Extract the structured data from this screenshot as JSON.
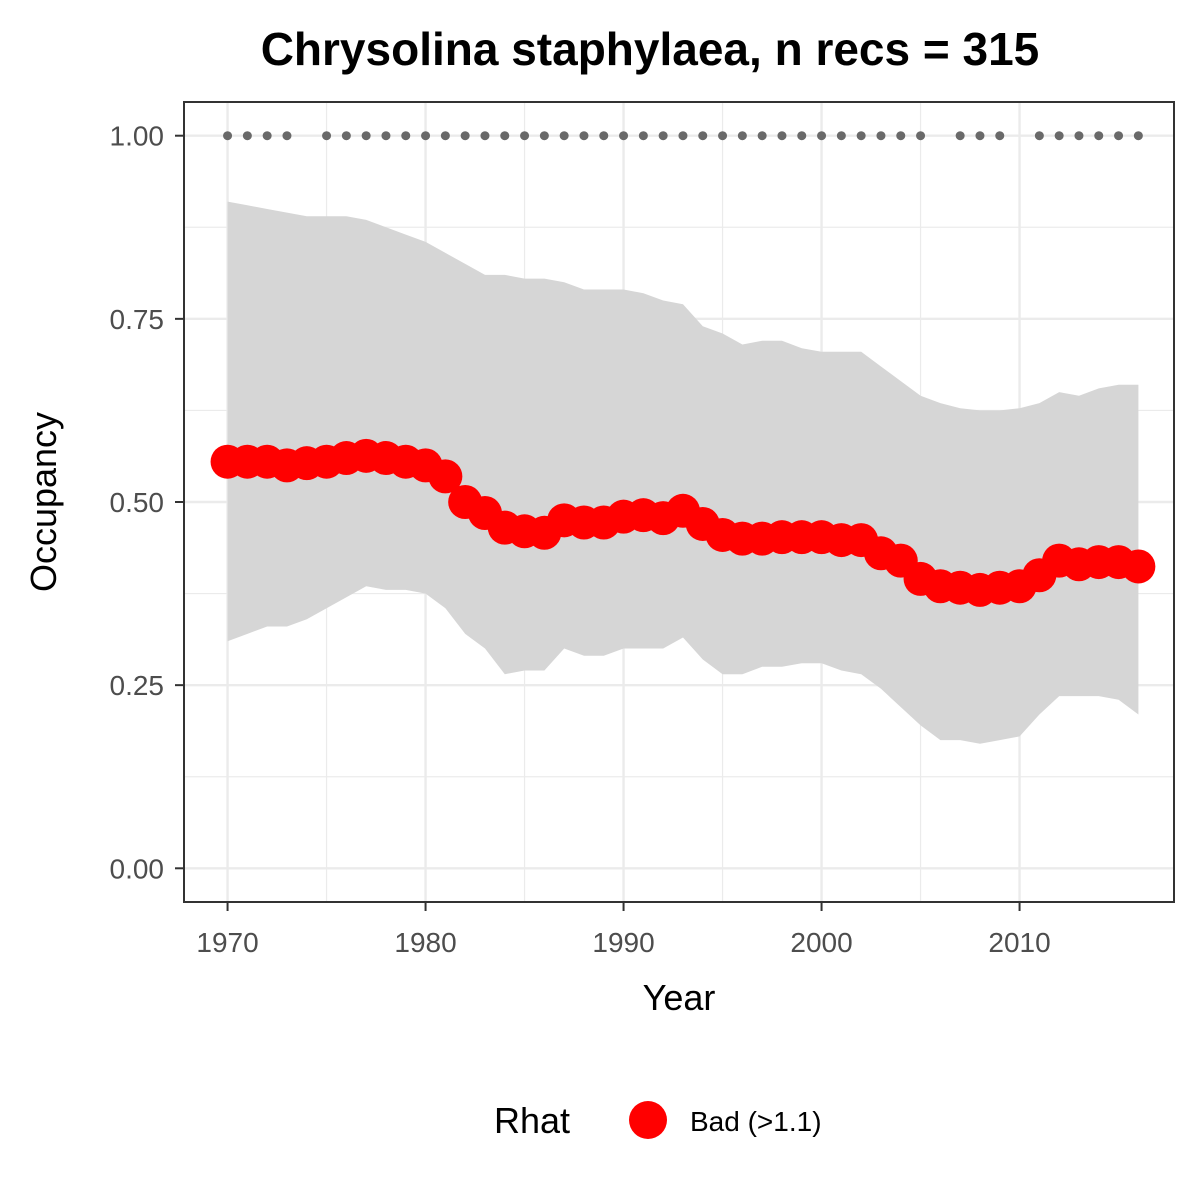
{
  "chart_data": {
    "type": "line",
    "title": "Chrysolina staphylaea, n recs = 315",
    "xlabel": "Year",
    "ylabel": "Occupancy",
    "xlim": [
      1967.8,
      2017.8
    ],
    "ylim": [
      -0.046,
      1.046
    ],
    "x_ticks": [
      1970,
      1980,
      1990,
      2000,
      2010
    ],
    "x_tick_labels": [
      "1970",
      "1980",
      "1990",
      "2000",
      "2010"
    ],
    "y_ticks": [
      0,
      0.25,
      0.5,
      0.75,
      1.0
    ],
    "y_tick_labels": [
      "0.00",
      "0.25",
      "0.50",
      "0.75",
      "1.00"
    ],
    "grid": true,
    "legend": {
      "position": "bottom",
      "title": "Rhat",
      "entries": [
        {
          "label": "Bad (>1.1)",
          "color": "#ff0000"
        }
      ]
    },
    "colors": {
      "series": "#ff0000",
      "ribbon": "#d6d6d6",
      "record_dots": "#696969"
    },
    "series": [
      {
        "label": "Bad (>1.1)",
        "x": [
          1970,
          1971,
          1972,
          1973,
          1974,
          1975,
          1976,
          1977,
          1978,
          1979,
          1980,
          1981,
          1982,
          1983,
          1984,
          1985,
          1986,
          1987,
          1988,
          1989,
          1990,
          1991,
          1992,
          1993,
          1994,
          1995,
          1996,
          1997,
          1998,
          1999,
          2000,
          2001,
          2002,
          2003,
          2004,
          2005,
          2006,
          2007,
          2008,
          2009,
          2010,
          2011,
          2012,
          2013,
          2014,
          2015,
          2016
        ],
        "y": [
          0.555,
          0.555,
          0.555,
          0.55,
          0.553,
          0.555,
          0.56,
          0.563,
          0.56,
          0.555,
          0.55,
          0.535,
          0.5,
          0.485,
          0.465,
          0.46,
          0.458,
          0.475,
          0.472,
          0.472,
          0.48,
          0.482,
          0.478,
          0.488,
          0.47,
          0.455,
          0.45,
          0.45,
          0.452,
          0.452,
          0.452,
          0.448,
          0.448,
          0.43,
          0.42,
          0.395,
          0.385,
          0.383,
          0.38,
          0.383,
          0.385,
          0.4,
          0.42,
          0.415,
          0.418,
          0.418,
          0.412
        ]
      }
    ],
    "ribbon": {
      "x": [
        1970,
        1971,
        1972,
        1973,
        1974,
        1975,
        1976,
        1977,
        1978,
        1979,
        1980,
        1981,
        1982,
        1983,
        1984,
        1985,
        1986,
        1987,
        1988,
        1989,
        1990,
        1991,
        1992,
        1993,
        1994,
        1995,
        1996,
        1997,
        1998,
        1999,
        2000,
        2001,
        2002,
        2003,
        2004,
        2005,
        2006,
        2007,
        2008,
        2009,
        2010,
        2011,
        2012,
        2013,
        2014,
        2015,
        2016
      ],
      "upper": [
        0.91,
        0.905,
        0.9,
        0.895,
        0.89,
        0.89,
        0.89,
        0.885,
        0.875,
        0.865,
        0.855,
        0.84,
        0.825,
        0.81,
        0.81,
        0.805,
        0.805,
        0.8,
        0.79,
        0.79,
        0.79,
        0.785,
        0.775,
        0.77,
        0.74,
        0.73,
        0.715,
        0.72,
        0.72,
        0.71,
        0.705,
        0.705,
        0.705,
        0.685,
        0.665,
        0.645,
        0.635,
        0.628,
        0.625,
        0.625,
        0.628,
        0.635,
        0.65,
        0.645,
        0.655,
        0.66,
        0.66
      ],
      "lower": [
        0.31,
        0.32,
        0.33,
        0.33,
        0.34,
        0.355,
        0.37,
        0.385,
        0.38,
        0.38,
        0.375,
        0.355,
        0.32,
        0.3,
        0.265,
        0.27,
        0.27,
        0.3,
        0.29,
        0.29,
        0.3,
        0.3,
        0.3,
        0.315,
        0.285,
        0.265,
        0.265,
        0.275,
        0.275,
        0.28,
        0.28,
        0.27,
        0.265,
        0.245,
        0.22,
        0.195,
        0.175,
        0.175,
        0.17,
        0.175,
        0.18,
        0.21,
        0.235,
        0.235,
        0.235,
        0.23,
        0.21
      ]
    },
    "record_years": {
      "y": 1.0,
      "x": [
        1970,
        1971,
        1972,
        1973,
        1975,
        1976,
        1977,
        1978,
        1979,
        1980,
        1981,
        1982,
        1983,
        1984,
        1985,
        1986,
        1987,
        1988,
        1989,
        1990,
        1991,
        1992,
        1993,
        1994,
        1995,
        1996,
        1997,
        1998,
        1999,
        2000,
        2001,
        2002,
        2003,
        2004,
        2005,
        2007,
        2008,
        2009,
        2011,
        2012,
        2013,
        2014,
        2015,
        2016
      ]
    }
  }
}
